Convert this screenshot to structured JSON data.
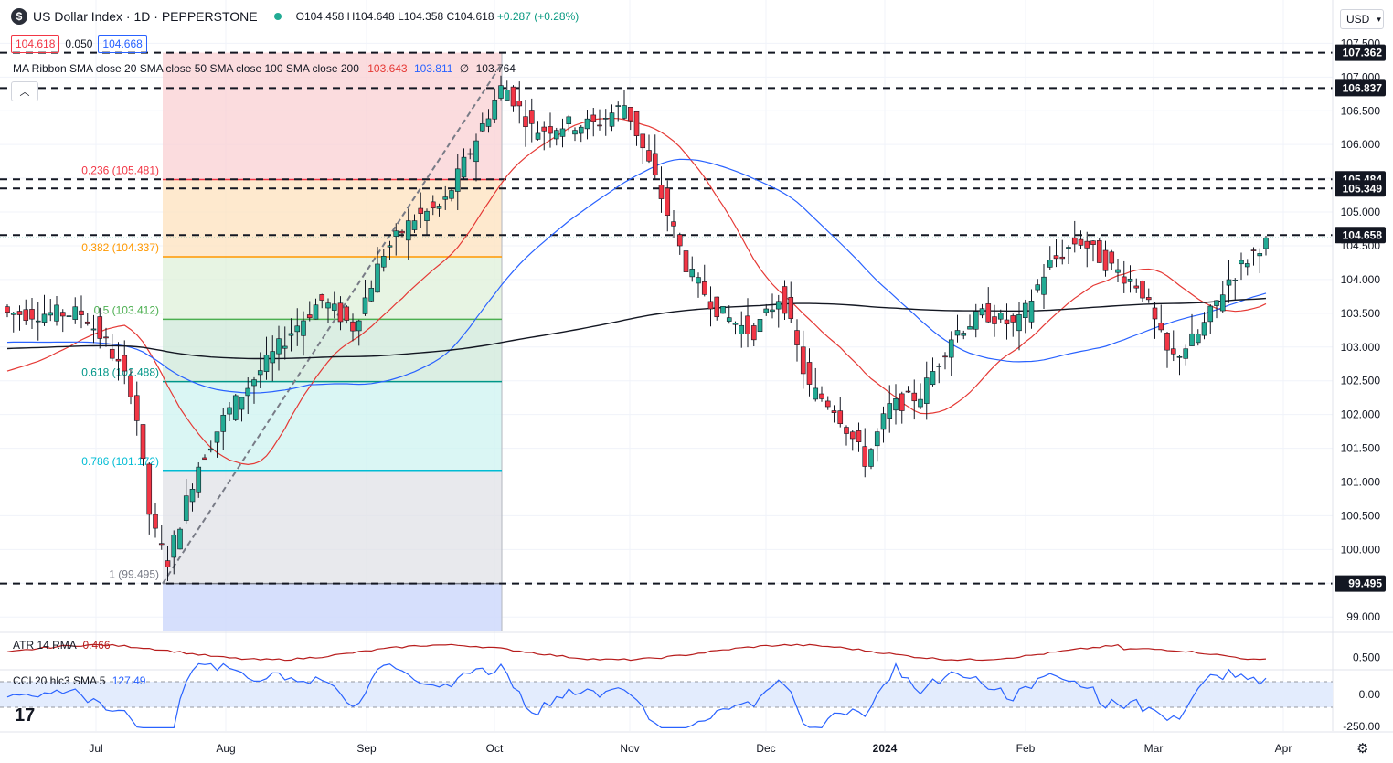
{
  "header": {
    "logo_text": "$",
    "title": "US Dollar Index · 1D · PEPPERSTONE",
    "open": "O104.458",
    "high": "H104.648",
    "low": "L104.358",
    "close": "C104.618",
    "change": "+0.287 (+0.28%)"
  },
  "quote": {
    "sell": "104.618",
    "spread": "0.050",
    "buy": "104.668"
  },
  "indicators": {
    "ma_label": "MA Ribbon SMA close 20 SMA close 50 SMA close 100 SMA close 200",
    "ma_v1": "103.643",
    "ma_v2": "103.811",
    "ma_v3": "∅",
    "ma_v4": "103.764",
    "atr_label": "ATR 14 RMA",
    "atr_value": "0.466",
    "cci_label": "CCI 20 hlc3 SMA 5",
    "cci_value": "127.49"
  },
  "controls": {
    "collapse": "︿",
    "currency": "USD",
    "currency_chevron": "▾",
    "logo": "17",
    "settings": "⚙"
  },
  "colors": {
    "up": "#22ab94",
    "down": "#f23645",
    "sma20": "#e53935",
    "sma50": "#2962ff",
    "sma200": "#131722",
    "atr": "#b71c1c",
    "cci": "#2962ff"
  },
  "chart_data": {
    "type": "candlestick",
    "x_ticks": [
      "Jul",
      "Aug",
      "Sep",
      "Oct",
      "Nov",
      "Dec",
      "2024",
      "Feb",
      "Mar",
      "Apr"
    ],
    "y_ticks": [
      "107.500",
      "107.000",
      "106.500",
      "106.000",
      "105.500",
      "105.000",
      "104.500",
      "104.000",
      "103.500",
      "103.000",
      "102.500",
      "102.000",
      "101.500",
      "101.000",
      "100.500",
      "100.000",
      "99.500",
      "99.000"
    ],
    "ylim": [
      98.8,
      107.6
    ],
    "horizontal_levels": [
      107.362,
      106.837,
      105.484,
      105.349,
      104.658,
      99.495
    ],
    "horizontal_level_labels": [
      "107.362",
      "106.837",
      "105.484",
      "105.349",
      "104.658",
      "99.495"
    ],
    "fibonacci": [
      {
        "label": "1 (99.495)",
        "ratio": 1,
        "value": 99.495
      },
      {
        "label": "0.786 (101.172)",
        "ratio": 0.786,
        "value": 101.172
      },
      {
        "label": "0.618 (102.488)",
        "ratio": 0.618,
        "value": 102.488
      },
      {
        "label": "0.5 (103.412)",
        "ratio": 0.5,
        "value": 103.412
      },
      {
        "label": "0.382 (104.337)",
        "ratio": 0.382,
        "value": 104.337
      },
      {
        "label": "0.236 (105.481)",
        "ratio": 0.236,
        "value": 105.481
      }
    ],
    "close_series": {
      "x": [
        "Jun 28",
        "Jul 4",
        "Jul 10",
        "Jul 14",
        "Jul 18",
        "Jul 25",
        "Aug 1",
        "Aug 8",
        "Aug 15",
        "Aug 22",
        "Aug 29",
        "Sep 5",
        "Sep 12",
        "Sep 19",
        "Sep 26",
        "Oct 3",
        "Oct 10",
        "Oct 17",
        "Oct 24",
        "Oct 31",
        "Nov 7",
        "Nov 14",
        "Nov 21",
        "Nov 28",
        "Dec 5",
        "Dec 12",
        "Dec 19",
        "Dec 27",
        "Jan 2",
        "Jan 9",
        "Jan 16",
        "Jan 23",
        "Jan 30",
        "Feb 6",
        "Feb 13",
        "Feb 20",
        "Feb 27",
        "Mar 5",
        "Mar 12",
        "Mar 19",
        "Mar 28"
      ],
      "close": [
        103.5,
        103.0,
        102.3,
        100.4,
        99.8,
        101.2,
        102.0,
        102.6,
        103.2,
        103.7,
        103.3,
        104.4,
        104.9,
        105.1,
        106.0,
        106.9,
        106.2,
        106.3,
        106.3,
        106.6,
        105.4,
        104.1,
        103.5,
        103.2,
        103.8,
        102.4,
        102.1,
        101.3,
        102.1,
        102.3,
        103.2,
        103.5,
        103.3,
        104.2,
        104.6,
        104.2,
        103.9,
        102.8,
        103.2,
        104.0,
        104.618
      ]
    },
    "atr": {
      "value": 0.466,
      "y_ticks": [
        "0.500"
      ]
    },
    "cci": {
      "value": 127.49,
      "y_ticks": [
        "0.00",
        "-250.00"
      ],
      "band": [
        -100,
        100
      ]
    },
    "moving_averages": {
      "sma20": 103.643,
      "sma50": 103.811,
      "sma200": 103.764
    }
  }
}
